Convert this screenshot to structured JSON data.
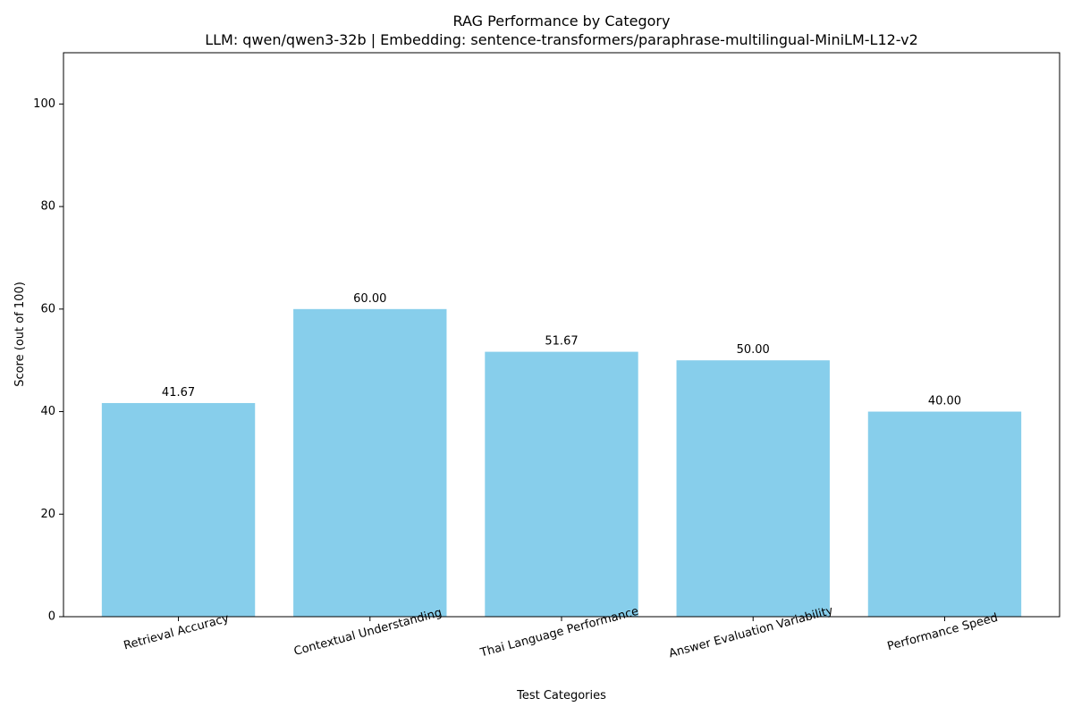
{
  "chart_data": {
    "type": "bar",
    "title": "RAG Performance by Category",
    "subtitle": "LLM: qwen/qwen3-32b | Embedding: sentence-transformers/paraphrase-multilingual-MiniLM-L12-v2",
    "xlabel": "Test Categories",
    "ylabel": "Score (out of 100)",
    "categories": [
      "Retrieval Accuracy",
      "Contextual Understanding",
      "Thai Language Performance",
      "Answer Evaluation Variability",
      "Performance Speed"
    ],
    "values": [
      41.67,
      60.0,
      51.67,
      50.0,
      40.0
    ],
    "value_labels": [
      "41.67",
      "60.00",
      "51.67",
      "50.00",
      "40.00"
    ],
    "ylim": [
      0,
      110
    ],
    "yticks": [
      0,
      20,
      40,
      60,
      80,
      100
    ],
    "bar_color": "#87CEEB",
    "grid": false,
    "legend": "none"
  }
}
